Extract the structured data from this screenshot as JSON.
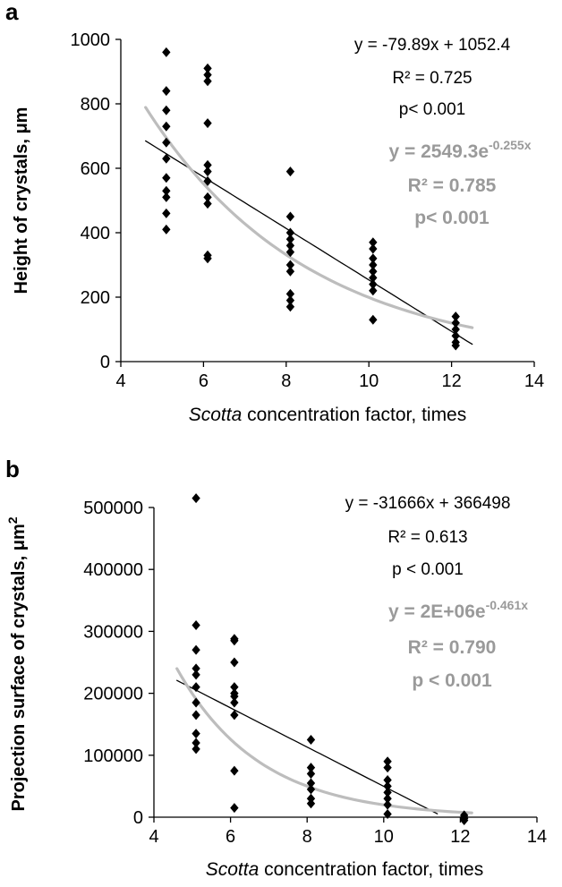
{
  "chart_data": [
    {
      "panel": "a",
      "type": "scatter",
      "xlabel_italic": "Scotta",
      "xlabel_rest": " concentration factor, times",
      "ylabel": "Height of crystals, μm",
      "xlim": [
        4,
        14
      ],
      "ylim": [
        0,
        1000
      ],
      "xticks": [
        "4",
        "6",
        "8",
        "10",
        "12",
        "14"
      ],
      "yticks": [
        "0",
        "200",
        "400",
        "600",
        "800",
        "1000"
      ],
      "series": [
        {
          "marker": "diamond",
          "points": [
            [
              5.1,
              960
            ],
            [
              5.1,
              840
            ],
            [
              5.1,
              780
            ],
            [
              5.1,
              730
            ],
            [
              5.1,
              680
            ],
            [
              5.1,
              630
            ],
            [
              5.1,
              570
            ],
            [
              5.1,
              530
            ],
            [
              5.1,
              510
            ],
            [
              5.1,
              460
            ],
            [
              5.1,
              410
            ],
            [
              6.1,
              910
            ],
            [
              6.1,
              890
            ],
            [
              6.1,
              870
            ],
            [
              6.1,
              740
            ],
            [
              6.1,
              610
            ],
            [
              6.1,
              590
            ],
            [
              6.1,
              560
            ],
            [
              6.1,
              510
            ],
            [
              6.1,
              490
            ],
            [
              6.1,
              330
            ],
            [
              6.1,
              320
            ],
            [
              8.1,
              590
            ],
            [
              8.1,
              450
            ],
            [
              8.1,
              400
            ],
            [
              8.1,
              380
            ],
            [
              8.1,
              360
            ],
            [
              8.1,
              340
            ],
            [
              8.1,
              300
            ],
            [
              8.1,
              280
            ],
            [
              8.1,
              210
            ],
            [
              8.1,
              190
            ],
            [
              8.1,
              170
            ],
            [
              10.1,
              370
            ],
            [
              10.1,
              350
            ],
            [
              10.1,
              320
            ],
            [
              10.1,
              300
            ],
            [
              10.1,
              280
            ],
            [
              10.1,
              260
            ],
            [
              10.1,
              240
            ],
            [
              10.1,
              220
            ],
            [
              10.1,
              130
            ],
            [
              12.1,
              140
            ],
            [
              12.1,
              120
            ],
            [
              12.1,
              100
            ],
            [
              12.1,
              80
            ],
            [
              12.1,
              60
            ],
            [
              12.1,
              50
            ]
          ]
        }
      ],
      "trendlines": [
        {
          "kind": "linear",
          "color": "#000000",
          "slope": -79.89,
          "intercept": 1052.4,
          "x_range": [
            4.6,
            12.5
          ]
        },
        {
          "kind": "exponential",
          "color": "#bdbdbd",
          "a": 2549.3,
          "b": -0.255,
          "x_range": [
            4.6,
            12.5
          ]
        }
      ],
      "annotations": {
        "linear": [
          "y = -79.89x + 1052.4",
          "R² = 0.725",
          "p< 0.001"
        ],
        "exp_prefix": "y = 2549.3e",
        "exp_power": "-0.255x",
        "exp_r2": "R² = 0.785",
        "exp_p": "p< 0.001"
      }
    },
    {
      "panel": "b",
      "type": "scatter",
      "xlabel_italic": "Scotta",
      "xlabel_rest": " concentration  factor, times",
      "ylabel_main": "Projection surface of crystals, μm",
      "ylabel_sup": "2",
      "xlim": [
        4,
        14
      ],
      "ylim": [
        0,
        500000
      ],
      "xticks": [
        "4",
        "6",
        "8",
        "10",
        "12",
        "14"
      ],
      "yticks": [
        "0",
        "100000",
        "200000",
        "300000",
        "400000",
        "500000"
      ],
      "series": [
        {
          "marker": "diamond",
          "points": [
            [
              5.1,
              515000
            ],
            [
              5.1,
              310000
            ],
            [
              5.1,
              270000
            ],
            [
              5.1,
              240000
            ],
            [
              5.1,
              230000
            ],
            [
              5.1,
              210000
            ],
            [
              5.1,
              185000
            ],
            [
              5.1,
              165000
            ],
            [
              5.1,
              135000
            ],
            [
              5.1,
              120000
            ],
            [
              5.1,
              110000
            ],
            [
              6.1,
              288000
            ],
            [
              6.1,
              285000
            ],
            [
              6.1,
              250000
            ],
            [
              6.1,
              210000
            ],
            [
              6.1,
              200000
            ],
            [
              6.1,
              195000
            ],
            [
              6.1,
              185000
            ],
            [
              6.1,
              165000
            ],
            [
              6.1,
              75000
            ],
            [
              6.1,
              15000
            ],
            [
              8.1,
              125000
            ],
            [
              8.1,
              80000
            ],
            [
              8.1,
              70000
            ],
            [
              8.1,
              55000
            ],
            [
              8.1,
              45000
            ],
            [
              8.1,
              30000
            ],
            [
              8.1,
              22000
            ],
            [
              10.1,
              90000
            ],
            [
              10.1,
              80000
            ],
            [
              10.1,
              60000
            ],
            [
              10.1,
              50000
            ],
            [
              10.1,
              40000
            ],
            [
              10.1,
              30000
            ],
            [
              10.1,
              20000
            ],
            [
              10.1,
              5000
            ],
            [
              12.1,
              3000
            ],
            [
              12.1,
              0
            ],
            [
              12.1,
              -2000
            ],
            [
              12.1,
              -5000
            ]
          ]
        }
      ],
      "trendlines": [
        {
          "kind": "linear",
          "color": "#000000",
          "slope": -31666,
          "intercept": 366498,
          "x_range": [
            4.6,
            11.4
          ]
        },
        {
          "kind": "exponential",
          "color": "#bdbdbd",
          "a": 2000000,
          "b": -0.461,
          "x_range": [
            4.6,
            12.3
          ]
        }
      ],
      "annotations": {
        "linear": [
          "y = -31666x + 366498",
          "R² = 0.613",
          "p < 0.001"
        ],
        "exp_prefix": "y = 2E+06e",
        "exp_power": "-0.461x",
        "exp_r2": "R² = 0.790",
        "exp_p": "p < 0.001"
      }
    }
  ]
}
